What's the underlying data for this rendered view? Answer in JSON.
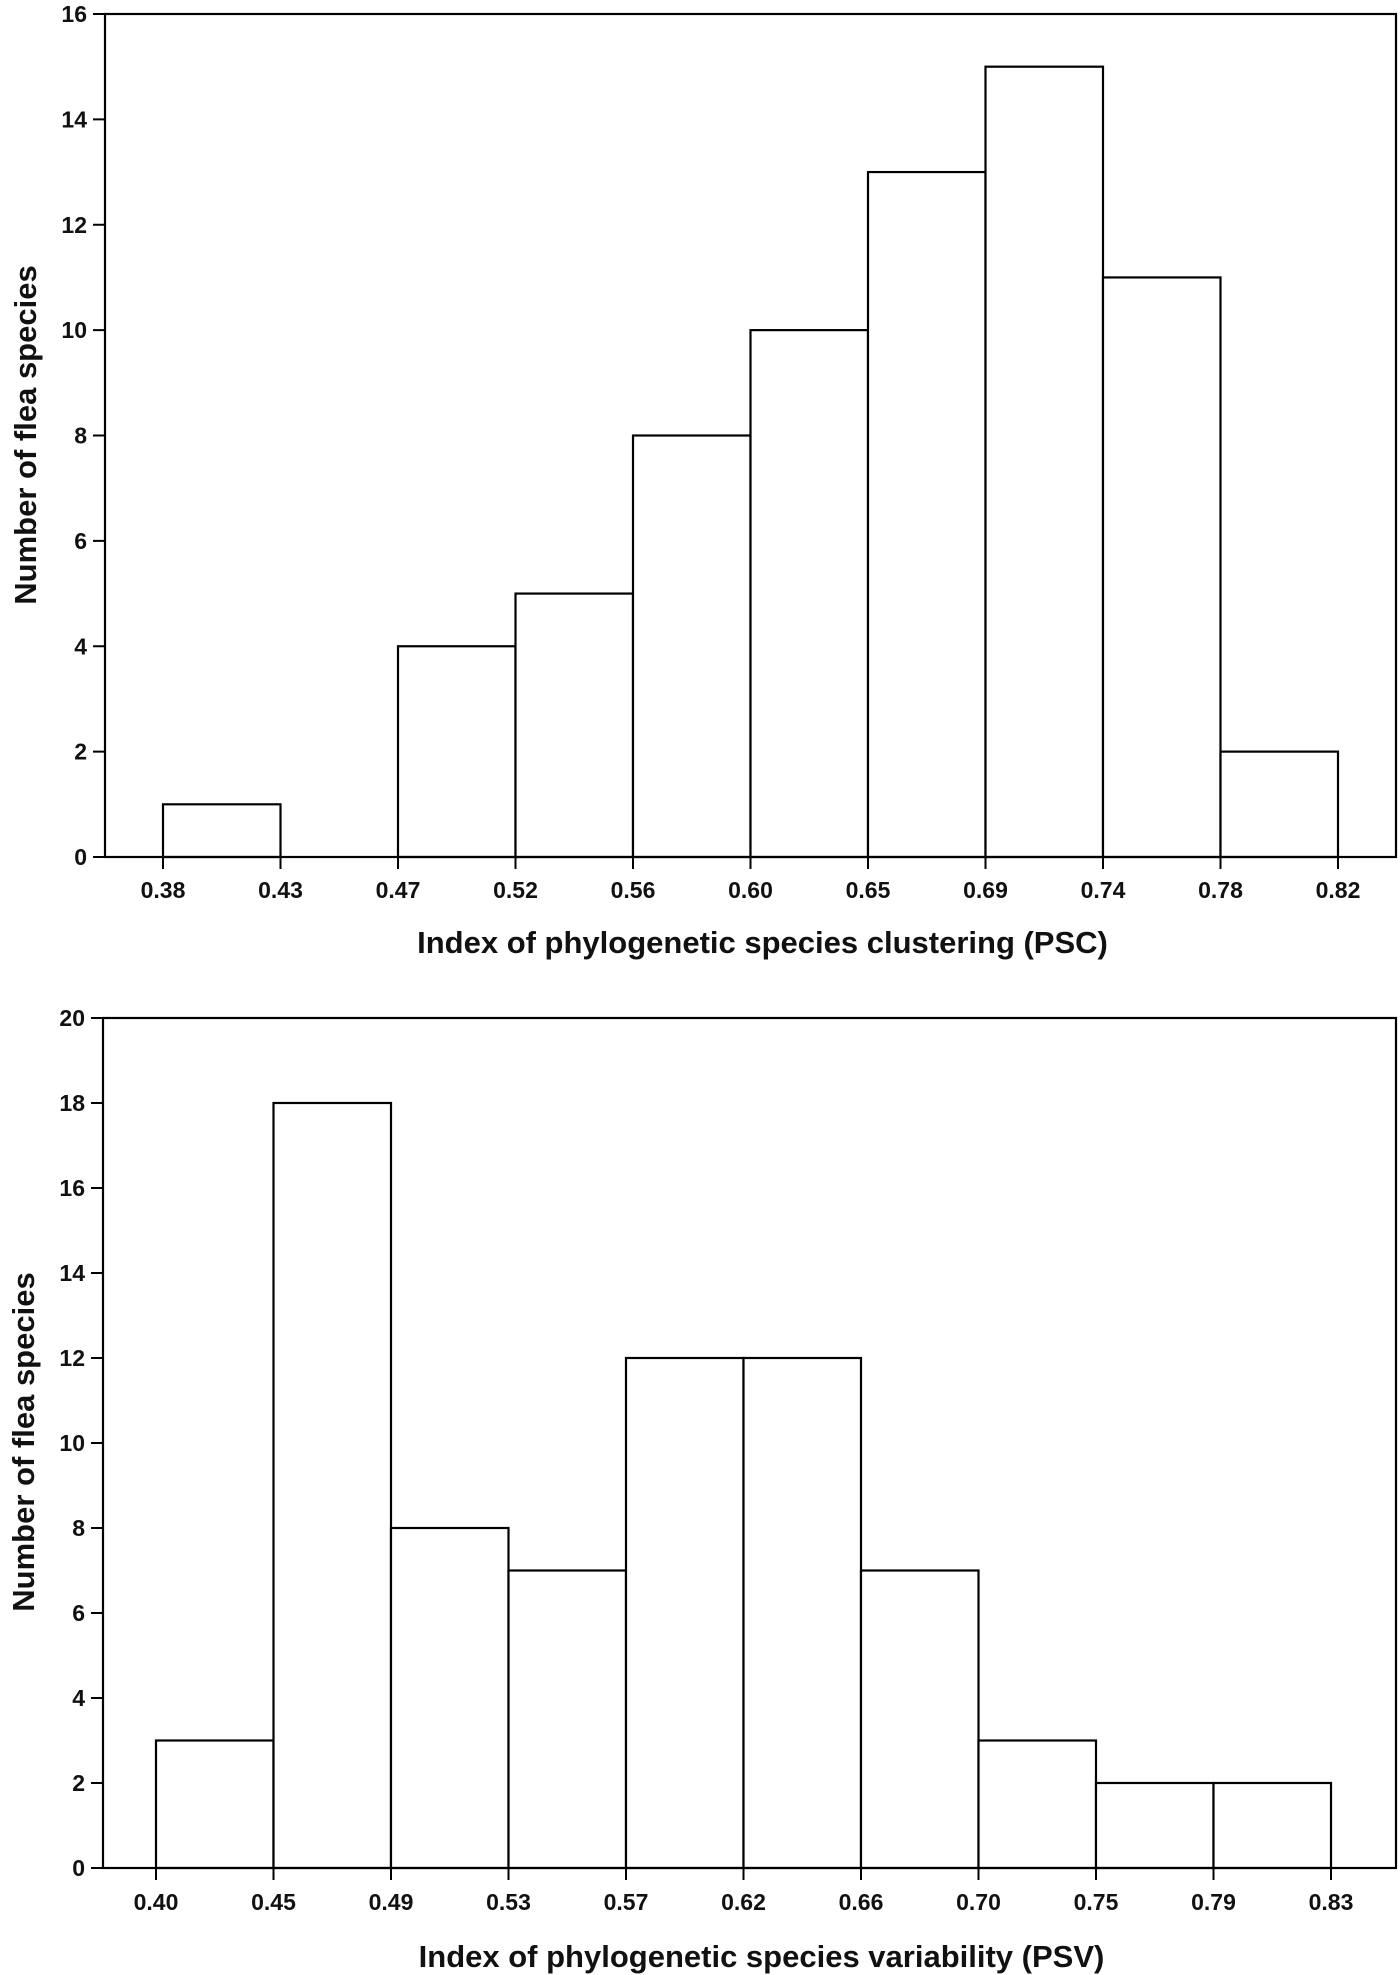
{
  "chart_data": [
    {
      "type": "bar",
      "xlabel": "Index of phylogenetic species clustering (PSC)",
      "ylabel": "Number of flea species",
      "ylim": [
        0,
        16
      ],
      "yticks": [
        0,
        2,
        4,
        6,
        8,
        10,
        12,
        14,
        16
      ],
      "bin_edges": [
        "0.38",
        "0.43",
        "0.47",
        "0.52",
        "0.56",
        "0.60",
        "0.65",
        "0.69",
        "0.74",
        "0.78",
        "0.82"
      ],
      "values": [
        1,
        0,
        4,
        5,
        8,
        10,
        13,
        15,
        11,
        2
      ],
      "grid": false,
      "legend": "none"
    },
    {
      "type": "bar",
      "xlabel": "Index of phylogenetic species variability (PSV)",
      "ylabel": "Number of flea species",
      "ylim": [
        0,
        20
      ],
      "yticks": [
        0,
        2,
        4,
        6,
        8,
        10,
        12,
        14,
        16,
        18,
        20
      ],
      "bin_edges": [
        "0.40",
        "0.45",
        "0.49",
        "0.53",
        "0.57",
        "0.62",
        "0.66",
        "0.70",
        "0.75",
        "0.79",
        "0.83"
      ],
      "values": [
        3,
        18,
        8,
        7,
        12,
        12,
        7,
        3,
        2,
        2
      ],
      "grid": false,
      "legend": "none"
    }
  ]
}
